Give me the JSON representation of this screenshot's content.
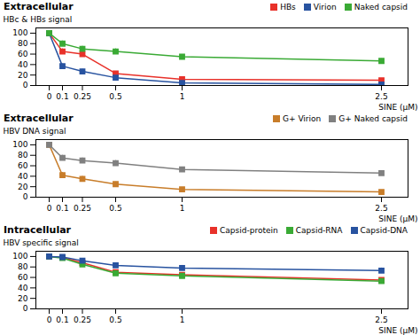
{
  "chart_data": [
    {
      "type": "line",
      "title": "Extracellular",
      "xlabel": "SINE (μM)",
      "ylabel": "HBc & HBs signal",
      "x": [
        0,
        0.1,
        0.25,
        0.5,
        1,
        2.5
      ],
      "xlim": [
        -0.1,
        2.7
      ],
      "xticks": [
        0,
        0.1,
        0.25,
        0.5,
        1,
        2.5
      ],
      "ylim": [
        0,
        110
      ],
      "yticks": [
        0,
        20,
        40,
        60,
        80,
        100
      ],
      "marker": "square",
      "grid": false,
      "legend": "upper right",
      "series": [
        {
          "name": "HBs",
          "color": "#e8312a",
          "values": [
            100,
            65,
            60,
            23,
            12,
            10
          ],
          "yerr": [
            3,
            5,
            5,
            4,
            3,
            2
          ]
        },
        {
          "name": "Virion",
          "color": "#2853a0",
          "values": [
            100,
            37,
            27,
            15,
            5,
            2
          ],
          "yerr": [
            3,
            4,
            4,
            3,
            2,
            1
          ]
        },
        {
          "name": "Naked capsid",
          "color": "#3aaa35",
          "values": [
            100,
            80,
            70,
            65,
            55,
            47
          ],
          "yerr": [
            3,
            5,
            5,
            5,
            4,
            4
          ]
        }
      ]
    },
    {
      "type": "line",
      "title": "Extracellular",
      "xlabel": "SINE (μM)",
      "ylabel": "HBV DNA signal",
      "x": [
        0,
        0.1,
        0.25,
        0.5,
        1,
        2.5
      ],
      "xlim": [
        -0.1,
        2.7
      ],
      "xticks": [
        0,
        0.1,
        0.25,
        0.5,
        1,
        2.5
      ],
      "ylim": [
        0,
        110
      ],
      "yticks": [
        0,
        20,
        40,
        60,
        80,
        100
      ],
      "marker": "square",
      "grid": false,
      "legend": "upper right",
      "series": [
        {
          "name": "G+ Virion",
          "color": "#c87d2a",
          "values": [
            100,
            42,
            35,
            25,
            15,
            10
          ],
          "yerr": [
            4,
            5,
            5,
            4,
            3,
            3
          ]
        },
        {
          "name": "G+ Naked capsid",
          "color": "#808080",
          "values": [
            100,
            75,
            70,
            65,
            53,
            46
          ],
          "yerr": [
            4,
            5,
            5,
            5,
            4,
            4
          ]
        }
      ]
    },
    {
      "type": "line",
      "title": "Intracellular",
      "xlabel": "SINE (μM)",
      "ylabel": "HBV specific signal",
      "x": [
        0,
        0.1,
        0.25,
        0.5,
        1,
        2.5
      ],
      "xlim": [
        -0.1,
        2.7
      ],
      "xticks": [
        0,
        0.1,
        0.25,
        0.5,
        1,
        2.5
      ],
      "ylim": [
        0,
        110
      ],
      "yticks": [
        0,
        20,
        40,
        60,
        80,
        100
      ],
      "marker": "square",
      "grid": false,
      "legend": "upper right",
      "series": [
        {
          "name": "Capsid-protein",
          "color": "#e8312a",
          "values": [
            100,
            98,
            88,
            70,
            65,
            55
          ],
          "yerr": [
            3,
            3,
            4,
            4,
            4,
            4
          ]
        },
        {
          "name": "Capsid-RNA",
          "color": "#3aaa35",
          "values": [
            100,
            97,
            85,
            68,
            63,
            53
          ],
          "yerr": [
            3,
            3,
            4,
            4,
            4,
            4
          ]
        },
        {
          "name": "Capsid-DNA",
          "color": "#2853a0",
          "values": [
            100,
            99,
            92,
            83,
            78,
            73
          ],
          "yerr": [
            3,
            3,
            4,
            5,
            5,
            5
          ]
        }
      ]
    }
  ]
}
